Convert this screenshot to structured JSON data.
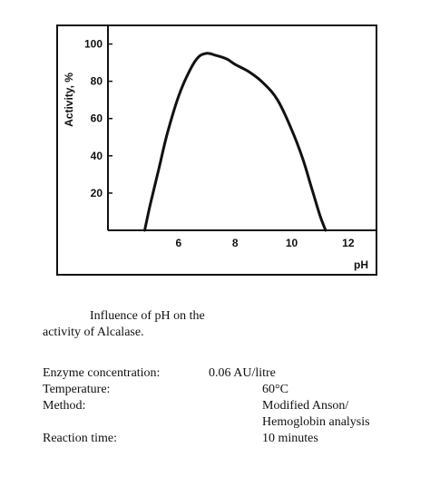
{
  "chart_data": {
    "type": "line",
    "title": "",
    "xlabel": "pH",
    "ylabel": "Activity, %",
    "xlim": [
      3.5,
      13.0
    ],
    "ylim": [
      0,
      110
    ],
    "xticks": [
      6,
      8,
      10,
      12
    ],
    "xtick_labels": [
      "6",
      "8",
      "10",
      "12"
    ],
    "yticks": [
      20,
      40,
      60,
      80,
      100
    ],
    "ytick_labels": [
      "20",
      "40",
      "60",
      "80",
      "100"
    ],
    "grid": false,
    "legend": "none",
    "series": [
      {
        "x": [
          4.8,
          5.0,
          5.3,
          5.6,
          6.0,
          6.4,
          6.7,
          7.0,
          7.3,
          7.7,
          8.0,
          8.5,
          9.0,
          9.5,
          10.0,
          10.4,
          10.7,
          11.0,
          11.2
        ],
        "y": [
          0,
          14,
          33,
          52,
          72,
          86,
          93,
          95,
          94,
          92,
          89,
          85,
          79,
          70,
          54,
          38,
          23,
          8,
          0
        ]
      }
    ],
    "line_color": "#111111"
  },
  "caption": {
    "line1": "Influence of pH on the",
    "line2": "activity of Alcalase."
  },
  "params": {
    "enzyme_label": "Enzyme concentration:",
    "enzyme_value": "0.06 AU/litre",
    "temperature_label": "Temperature:",
    "temperature_value": "60°C",
    "method_label": "Method:",
    "method_value_line1": "Modified Anson/",
    "method_value_line2": "Hemoglobin analysis",
    "reaction_label": "Reaction time:",
    "reaction_value": "10 minutes"
  }
}
